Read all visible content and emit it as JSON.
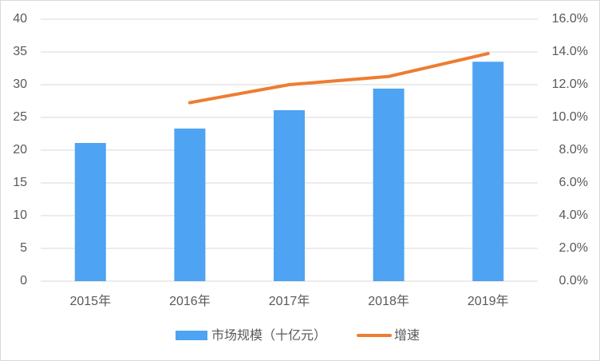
{
  "chart_data": {
    "type": "combo",
    "categories": [
      "2015年",
      "2016年",
      "2017年",
      "2018年",
      "2019年"
    ],
    "series": [
      {
        "name": "市场规模（十亿元）",
        "type": "bar",
        "color": "#4ea3f2",
        "values": [
          21.1,
          23.3,
          26.1,
          29.4,
          33.5
        ]
      },
      {
        "name": "增速",
        "type": "line",
        "color": "#ed7d31",
        "axis": "y2",
        "values": [
          null,
          10.9,
          12.0,
          12.5,
          13.9
        ]
      }
    ],
    "ylim": [
      0,
      40
    ],
    "yticks": [
      0,
      5,
      10,
      15,
      20,
      25,
      30,
      35,
      40
    ],
    "y2lim": [
      0,
      16
    ],
    "y2ticks": [
      {
        "value": 0,
        "label": "0.0%"
      },
      {
        "value": 2,
        "label": "2.0%"
      },
      {
        "value": 4,
        "label": "4.0%"
      },
      {
        "value": 6,
        "label": "6.0%"
      },
      {
        "value": 8,
        "label": "8.0%"
      },
      {
        "value": 10,
        "label": "10.0%"
      },
      {
        "value": 12,
        "label": "12.0%"
      },
      {
        "value": 14,
        "label": "14.0%"
      },
      {
        "value": 16,
        "label": "16.0%"
      }
    ],
    "grid": true,
    "legend": "bottom"
  }
}
